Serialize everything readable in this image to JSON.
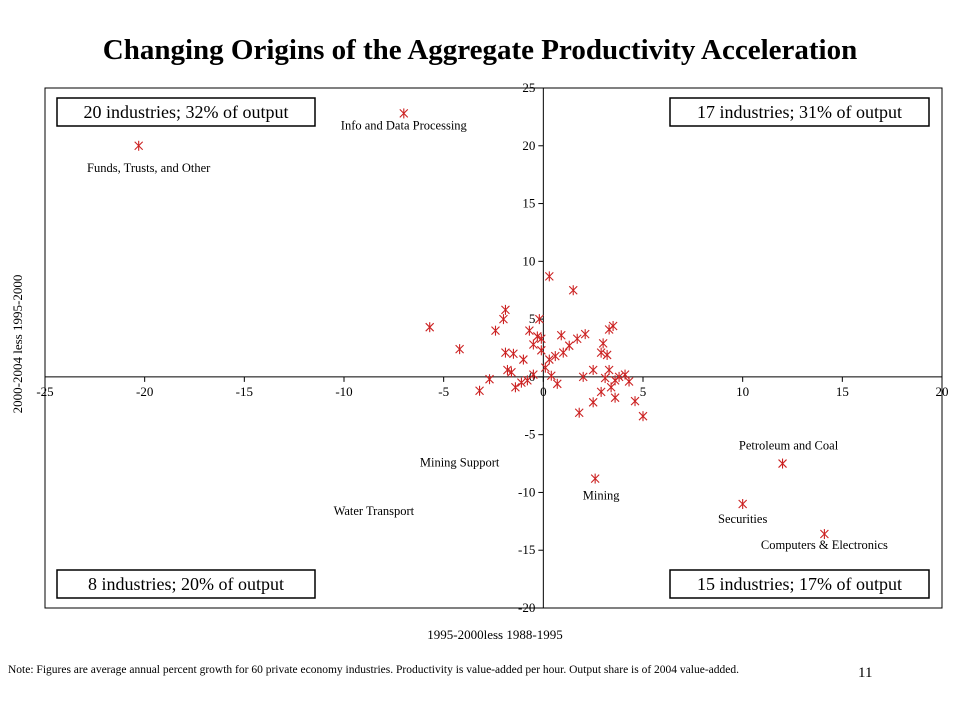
{
  "slide": {
    "title": "Changing Origins of the Aggregate Productivity Acceleration",
    "footnote": "Note: Figures are average annual percent growth for 60 private economy industries.  Productivity is value-added per hour.  Output share is of 2004 value-added.",
    "page_number": "11"
  },
  "chart_data": {
    "type": "scatter",
    "title": "Changing Origins of the Aggregate Productivity Acceleration",
    "xlabel": "1995-2000less 1988-1995",
    "ylabel": "2000-2004 less 1995-2000",
    "xlim": [
      -25,
      20
    ],
    "ylim": [
      -20,
      25
    ],
    "x_ticks": [
      -25,
      -20,
      -15,
      -10,
      -5,
      0,
      5,
      10,
      15,
      20
    ],
    "y_ticks": [
      -20,
      -15,
      -10,
      -5,
      0,
      5,
      10,
      15,
      20,
      25
    ],
    "grid": false,
    "marker": "asterisk",
    "marker_color": "#cc2222",
    "axis_color": "#000000",
    "quadrant_boxes": [
      {
        "quadrant": "top-left",
        "text": "20 industries; 32% of output"
      },
      {
        "quadrant": "top-right",
        "text": "17 industries; 31% of output"
      },
      {
        "quadrant": "bottom-left",
        "text": "8 industries; 20% of output"
      },
      {
        "quadrant": "bottom-right",
        "text": "15 industries; 17% of output"
      }
    ],
    "annotations": [
      {
        "text": "Info and Data Processing",
        "x": -7.0,
        "y": 22.8
      },
      {
        "text": "Funds, Trusts, and Other",
        "x": -20.3,
        "y": 20.0
      },
      {
        "text": "Mining Support",
        "x": -4.8,
        "y": -8.8
      },
      {
        "text": "Water Transport",
        "x": -8.0,
        "y": -10.3
      },
      {
        "text": "Mining",
        "x": 2.6,
        "y": -8.8
      },
      {
        "text": "Petroleum and Coal",
        "x": 12.0,
        "y": -7.5
      },
      {
        "text": "Securities",
        "x": 10.0,
        "y": -11.0
      },
      {
        "text": "Computers & Electronics",
        "x": 14.1,
        "y": -13.6
      }
    ],
    "points": [
      {
        "x": -20.3,
        "y": 20.0
      },
      {
        "x": -7.0,
        "y": 22.8
      },
      {
        "x": -5.7,
        "y": 4.3
      },
      {
        "x": -4.2,
        "y": 2.4
      },
      {
        "x": -3.2,
        "y": -1.2
      },
      {
        "x": -2.7,
        "y": -0.2
      },
      {
        "x": -2.4,
        "y": 4.0
      },
      {
        "x": -2.0,
        "y": 5.0
      },
      {
        "x": -1.9,
        "y": 5.8
      },
      {
        "x": -1.9,
        "y": 2.1
      },
      {
        "x": -1.8,
        "y": 0.6
      },
      {
        "x": -1.6,
        "y": 0.4
      },
      {
        "x": -1.5,
        "y": 2.0
      },
      {
        "x": -1.4,
        "y": -0.9
      },
      {
        "x": -1.1,
        "y": -0.5
      },
      {
        "x": -1.0,
        "y": 1.5
      },
      {
        "x": -0.8,
        "y": -0.3
      },
      {
        "x": -0.7,
        "y": 4.0
      },
      {
        "x": -0.5,
        "y": 0.2
      },
      {
        "x": -0.5,
        "y": 2.8
      },
      {
        "x": -0.3,
        "y": 3.5
      },
      {
        "x": -0.2,
        "y": 5.0
      },
      {
        "x": -0.1,
        "y": 3.3
      },
      {
        "x": -0.1,
        "y": 2.3
      },
      {
        "x": 0.1,
        "y": 0.8
      },
      {
        "x": 0.3,
        "y": 8.7
      },
      {
        "x": 0.3,
        "y": 1.5
      },
      {
        "x": 0.4,
        "y": 0.1
      },
      {
        "x": 0.6,
        "y": 1.8
      },
      {
        "x": 0.9,
        "y": 3.6
      },
      {
        "x": 1.0,
        "y": 2.1
      },
      {
        "x": 0.7,
        "y": -0.6
      },
      {
        "x": 1.3,
        "y": 2.7
      },
      {
        "x": 1.5,
        "y": 7.5
      },
      {
        "x": 1.7,
        "y": 3.3
      },
      {
        "x": 1.8,
        "y": -3.1
      },
      {
        "x": 2.0,
        "y": 0.0
      },
      {
        "x": 2.1,
        "y": 3.7
      },
      {
        "x": 3.2,
        "y": 1.9
      },
      {
        "x": 2.5,
        "y": -2.2
      },
      {
        "x": 2.5,
        "y": 0.6
      },
      {
        "x": 2.9,
        "y": 2.1
      },
      {
        "x": 3.0,
        "y": 2.9
      },
      {
        "x": 3.3,
        "y": 4.1
      },
      {
        "x": 3.5,
        "y": 4.4
      },
      {
        "x": 2.9,
        "y": -1.3
      },
      {
        "x": 3.4,
        "y": -0.9
      },
      {
        "x": 3.6,
        "y": -1.8
      },
      {
        "x": 3.1,
        "y": -0.1
      },
      {
        "x": 3.3,
        "y": 0.6
      },
      {
        "x": 3.6,
        "y": -0.3
      },
      {
        "x": 3.8,
        "y": 0.0
      },
      {
        "x": 4.1,
        "y": 0.2
      },
      {
        "x": 4.3,
        "y": -0.4
      },
      {
        "x": 4.6,
        "y": -2.1
      },
      {
        "x": 5.0,
        "y": -3.4
      },
      {
        "x": 2.6,
        "y": -8.8
      },
      {
        "x": 12.0,
        "y": -7.5
      },
      {
        "x": 10.0,
        "y": -11.0
      },
      {
        "x": 14.1,
        "y": -13.6
      }
    ]
  }
}
